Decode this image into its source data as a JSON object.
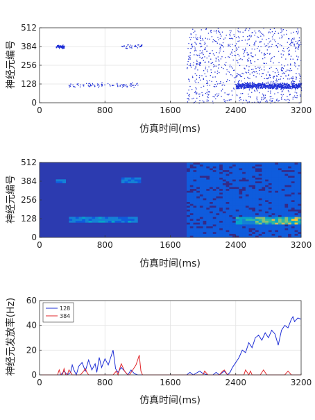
{
  "figure": {
    "panels": [
      {
        "id": "raster",
        "xlabel": "仿真时间(ms)",
        "ylabel": "神经元编号"
      },
      {
        "id": "heatmap",
        "xlabel": "仿真时间(ms)",
        "ylabel": "神经元编号"
      },
      {
        "id": "rate",
        "xlabel": "仿真时间(ms)",
        "ylabel": "神经元发放率(Hz)"
      }
    ]
  },
  "chart_data": [
    {
      "type": "scatter",
      "title": "",
      "xlabel": "仿真时间(ms)",
      "ylabel": "神经元编号",
      "xlim": [
        0,
        3200
      ],
      "ylim": [
        0,
        512
      ],
      "xticks": [
        0,
        800,
        1600,
        2400,
        3200
      ],
      "yticks": [
        0,
        128,
        256,
        384,
        512
      ],
      "grid": true,
      "marker_color": "#1f2fd6",
      "spike_clusters": [
        {
          "t_start": 200,
          "t_end": 300,
          "neuron_low": 370,
          "neuron_high": 400
        },
        {
          "t_start": 1000,
          "t_end": 1250,
          "neuron_low": 370,
          "neuron_high": 405
        },
        {
          "t_start": 350,
          "t_end": 1200,
          "neuron_low": 105,
          "neuron_high": 140
        },
        {
          "t_start": 1800,
          "t_end": 3200,
          "neuron_low": 0,
          "neuron_high": 512
        },
        {
          "t_start": 2400,
          "t_end": 3200,
          "neuron_low": 95,
          "neuron_high": 140
        }
      ]
    },
    {
      "type": "heatmap",
      "title": "",
      "xlabel": "仿真时间(ms)",
      "ylabel": "神经元编号",
      "xlim": [
        0,
        3200
      ],
      "ylim": [
        0,
        512
      ],
      "xticks": [
        0,
        800,
        1600,
        2400,
        3200
      ],
      "yticks": [
        0,
        128,
        256,
        384,
        512
      ],
      "colormap": [
        "#352a87",
        "#0f5cdd",
        "#1481d6",
        "#06a4ca",
        "#2eb7a4",
        "#87bf77",
        "#d1bb59",
        "#fec832",
        "#f9fb0e"
      ],
      "background_color": "#2c3bb0",
      "hotspots": [
        {
          "t_start": 200,
          "t_end": 300,
          "neuron_low": 370,
          "neuron_high": 400,
          "level": 0.2
        },
        {
          "t_start": 1000,
          "t_end": 1250,
          "neuron_low": 370,
          "neuron_high": 405,
          "level": 0.2
        },
        {
          "t_start": 350,
          "t_end": 1200,
          "neuron_low": 105,
          "neuron_high": 140,
          "level": 0.25
        },
        {
          "t_start": 1800,
          "t_end": 3200,
          "neuron_low": 0,
          "neuron_high": 512,
          "level": 0.1
        },
        {
          "t_start": 2400,
          "t_end": 3200,
          "neuron_low": 95,
          "neuron_high": 140,
          "level": 0.7
        }
      ]
    },
    {
      "type": "line",
      "title": "",
      "xlabel": "仿真时间(ms)",
      "ylabel": "神经元发放率(Hz)",
      "xlim": [
        0,
        3200
      ],
      "ylim": [
        0,
        60
      ],
      "xticks": [
        0,
        800,
        1600,
        2400,
        3200
      ],
      "yticks": [
        0,
        20,
        40,
        60
      ],
      "grid": true,
      "legend_position": "top-left",
      "series": [
        {
          "name": "128",
          "color": "#1f2fd6",
          "x": [
            0,
            260,
            300,
            340,
            380,
            400,
            420,
            450,
            480,
            520,
            560,
            600,
            640,
            680,
            700,
            730,
            760,
            800,
            840,
            880,
            900,
            930,
            960,
            1000,
            1040,
            1080,
            1120,
            1160,
            1200,
            1240,
            1800,
            1840,
            1880,
            1960,
            2000,
            2060,
            2120,
            2160,
            2200,
            2260,
            2300,
            2330,
            2360,
            2400,
            2440,
            2480,
            2520,
            2560,
            2600,
            2640,
            2680,
            2720,
            2760,
            2800,
            2840,
            2880,
            2920,
            2960,
            3000,
            3040,
            3080,
            3100,
            3120,
            3160,
            3200
          ],
          "y": [
            0,
            0,
            3,
            0,
            2,
            8,
            4,
            0,
            7,
            10,
            3,
            12,
            4,
            9,
            2,
            14,
            6,
            13,
            8,
            16,
            20,
            5,
            2,
            6,
            3,
            0,
            4,
            1,
            0,
            0,
            0,
            2,
            0,
            3,
            1,
            0,
            0,
            2,
            0,
            3,
            0,
            2,
            6,
            10,
            14,
            20,
            18,
            26,
            22,
            30,
            32,
            28,
            34,
            30,
            36,
            33,
            24,
            36,
            40,
            38,
            45,
            47,
            43,
            46,
            45
          ]
        },
        {
          "name": "384",
          "color": "#e0262a",
          "x": [
            0,
            220,
            240,
            260,
            280,
            300,
            320,
            340,
            360,
            400,
            500,
            540,
            560,
            580,
            600,
            900,
            940,
            960,
            980,
            1000,
            1040,
            1080,
            1100,
            1140,
            1180,
            1200,
            1220,
            1240,
            1260,
            1300,
            1900,
            2000,
            2020,
            2060,
            2100,
            2200,
            2240,
            2260,
            2300,
            2500,
            2520,
            2560,
            2580,
            2600,
            2700,
            2740,
            2780,
            2800,
            3000,
            3040,
            3080,
            3100,
            3200
          ],
          "y": [
            0,
            0,
            4,
            0,
            0,
            5,
            0,
            0,
            4,
            0,
            0,
            3,
            5,
            2,
            0,
            0,
            3,
            0,
            5,
            9,
            3,
            0,
            0,
            4,
            8,
            12,
            16,
            3,
            0,
            0,
            0,
            0,
            3,
            0,
            0,
            0,
            3,
            4,
            0,
            0,
            4,
            0,
            3,
            0,
            0,
            4,
            0,
            0,
            0,
            3,
            0,
            0,
            0
          ]
        }
      ]
    }
  ]
}
